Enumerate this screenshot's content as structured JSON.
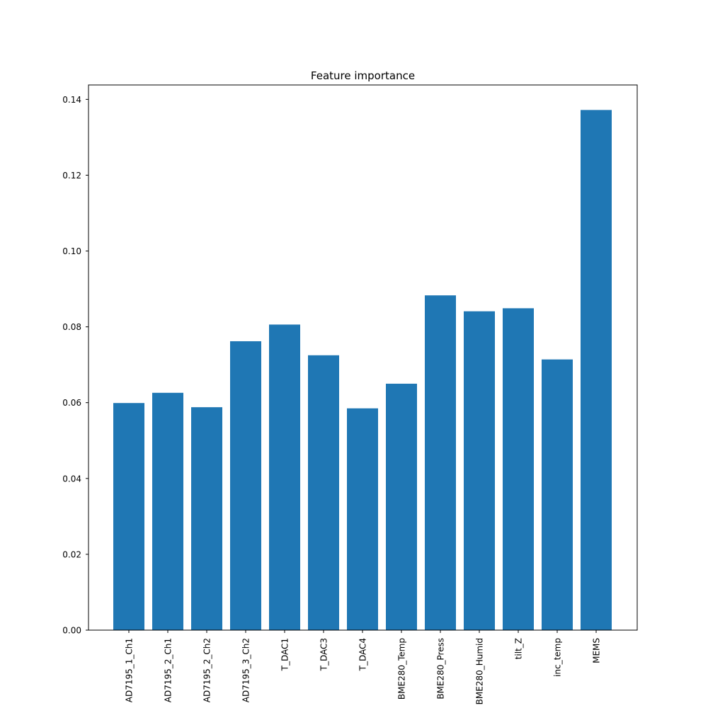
{
  "chart_data": {
    "type": "bar",
    "title": "Feature importance",
    "xlabel": "",
    "ylabel": "",
    "categories": [
      "AD7195_1_Ch1",
      "AD7195_2_Ch1",
      "AD7195_2_Ch2",
      "AD7195_3_Ch2",
      "T_DAC1",
      "T_DAC3",
      "T_DAC4",
      "BME280_Temp",
      "BME280_Press",
      "BME280_Humid",
      "tilt_Z",
      "inc_temp",
      "MEMS"
    ],
    "values": [
      0.0599,
      0.0626,
      0.0588,
      0.0762,
      0.0806,
      0.0725,
      0.0585,
      0.065,
      0.0883,
      0.0841,
      0.0849,
      0.0714,
      0.1372
    ],
    "ylim": [
      0,
      0.1438
    ],
    "yticks": [
      0.0,
      0.02,
      0.04,
      0.06,
      0.08,
      0.1,
      0.12,
      0.14
    ],
    "ytick_labels": [
      "0.00",
      "0.02",
      "0.04",
      "0.06",
      "0.08",
      "0.10",
      "0.12",
      "0.14"
    ],
    "bar_color": "#1f77b4",
    "grid": false,
    "legend": "none"
  }
}
